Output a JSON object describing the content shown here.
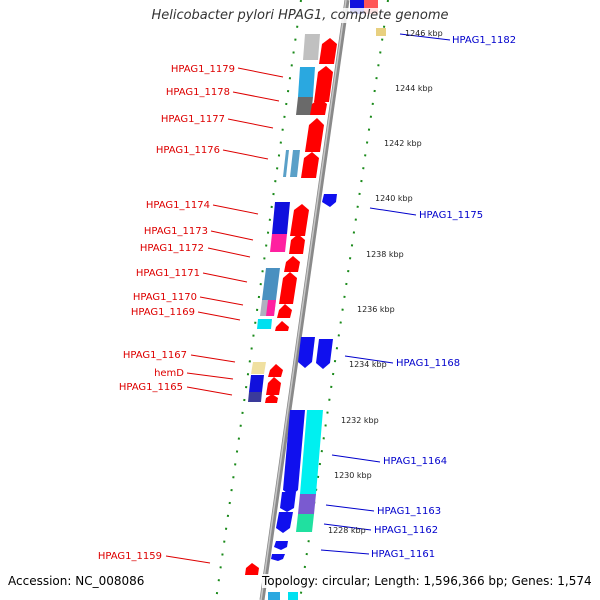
{
  "title": "Helicobacter pylori HPAG1, complete genome",
  "footer": {
    "accession": "Accession: NC_008086",
    "summary": "Topology: circular; Length: 1,596,366 bp; Genes: 1,574"
  },
  "colors": {
    "left_label": "#dd0000",
    "right_label": "#0000cc",
    "reverse_strand": "#ff0000",
    "forward_strand": "#0000ee",
    "backbone": "#888888",
    "ring": "#1a8a1a"
  },
  "left_labels": [
    {
      "text": "HPAG1_1179"
    },
    {
      "text": "HPAG1_1178"
    },
    {
      "text": "HPAG1_1177"
    },
    {
      "text": "HPAG1_1176"
    },
    {
      "text": "HPAG1_1174"
    },
    {
      "text": "HPAG1_1173"
    },
    {
      "text": "HPAG1_1172"
    },
    {
      "text": "HPAG1_1171"
    },
    {
      "text": "HPAG1_1170"
    },
    {
      "text": "HPAG1_1169"
    },
    {
      "text": "HPAG1_1167"
    },
    {
      "text": "hemD"
    },
    {
      "text": "HPAG1_1165"
    },
    {
      "text": "HPAG1_1159"
    }
  ],
  "right_labels": [
    {
      "text": "HPAG1_1182"
    },
    {
      "text": "HPAG1_1175"
    },
    {
      "text": "HPAG1_1168"
    },
    {
      "text": "HPAG1_1164"
    },
    {
      "text": "HPAG1_1163"
    },
    {
      "text": "HPAG1_1162"
    },
    {
      "text": "HPAG1_1161"
    }
  ],
  "kbp_ticks": [
    {
      "text": "1246 kbp"
    },
    {
      "text": "1244 kbp"
    },
    {
      "text": "1242 kbp"
    },
    {
      "text": "1240 kbp"
    },
    {
      "text": "1238 kbp"
    },
    {
      "text": "1236 kbp"
    },
    {
      "text": "1234 kbp"
    },
    {
      "text": "1232 kbp"
    },
    {
      "text": "1230 kbp"
    },
    {
      "text": "1228 kbp"
    }
  ]
}
